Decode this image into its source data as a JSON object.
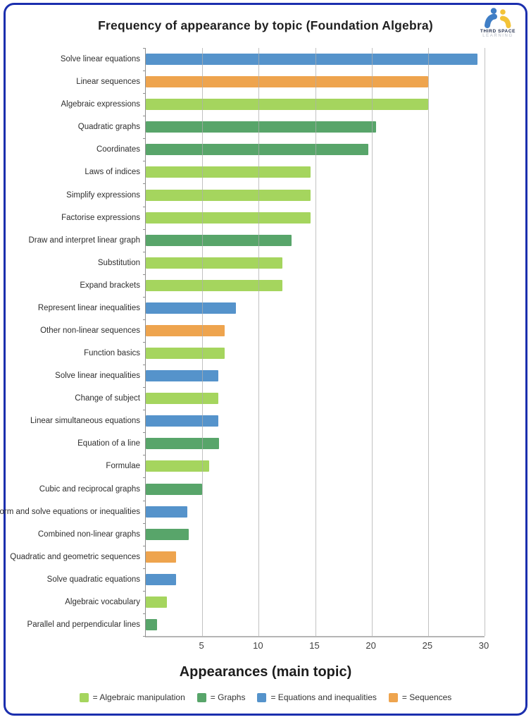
{
  "logo": {
    "line1": "THIRD SPACE",
    "line2": "LEARNING"
  },
  "colors": {
    "frame_border": "#1b2fae",
    "logo_blue": "#3f7ec6",
    "logo_yellow": "#f3c337"
  },
  "chart_data": {
    "type": "bar",
    "orientation": "horizontal",
    "title": "Frequency of appearance by topic (Foundation Algebra)",
    "xlabel": "Appearances (main topic)",
    "ylabel": "",
    "xlim": [
      0,
      30
    ],
    "xticks": [
      5,
      10,
      15,
      20,
      25,
      30
    ],
    "grid": true,
    "legend_position": "bottom",
    "categories": [
      "Solve linear equations",
      "Linear sequences",
      "Algebraic expressions",
      "Quadratic graphs",
      "Coordinates",
      "Laws of indices",
      "Simplify expressions",
      "Factorise expressions",
      "Draw and interpret linear graph",
      "Substitution",
      "Expand brackets",
      "Represent linear inequalities",
      "Other non-linear sequences",
      "Function basics",
      "Solve linear inequalities",
      "Change of subject",
      "Linear simultaneous equations",
      "Equation of a line",
      "Formulae",
      "Cubic and reciprocal graphs",
      "Form and solve equations or inequalities",
      "Combined non-linear graphs",
      "Quadratic and geometric sequences",
      "Solve quadratic equations",
      "Algebraic vocabulary",
      "Parallel and perpendicular lines"
    ],
    "values": [
      29.4,
      25,
      25,
      20.4,
      19.7,
      14.6,
      14.6,
      14.6,
      12.9,
      12.1,
      12.1,
      8,
      7,
      7,
      6.4,
      6.4,
      6.4,
      6.5,
      5.6,
      5,
      3.7,
      3.8,
      2.7,
      2.7,
      1.9,
      1
    ],
    "bar_groups": [
      "equations_and_inequalities",
      "sequences",
      "algebraic_manipulation",
      "graphs",
      "graphs",
      "algebraic_manipulation",
      "algebraic_manipulation",
      "algebraic_manipulation",
      "graphs",
      "algebraic_manipulation",
      "algebraic_manipulation",
      "equations_and_inequalities",
      "sequences",
      "algebraic_manipulation",
      "equations_and_inequalities",
      "algebraic_manipulation",
      "equations_and_inequalities",
      "graphs",
      "algebraic_manipulation",
      "graphs",
      "equations_and_inequalities",
      "graphs",
      "sequences",
      "equations_and_inequalities",
      "algebraic_manipulation",
      "graphs"
    ],
    "palette": {
      "algebraic_manipulation": "#a5d55e",
      "graphs": "#58a56a",
      "equations_and_inequalities": "#5593cb",
      "sequences": "#eea44e"
    },
    "legend": [
      {
        "text": "= Algebraic manipulation",
        "group": "algebraic_manipulation"
      },
      {
        "text": "= Graphs",
        "group": "graphs"
      },
      {
        "text": "= Equations and inequalities",
        "group": "equations_and_inequalities"
      },
      {
        "text": "= Sequences",
        "group": "sequences"
      }
    ]
  }
}
